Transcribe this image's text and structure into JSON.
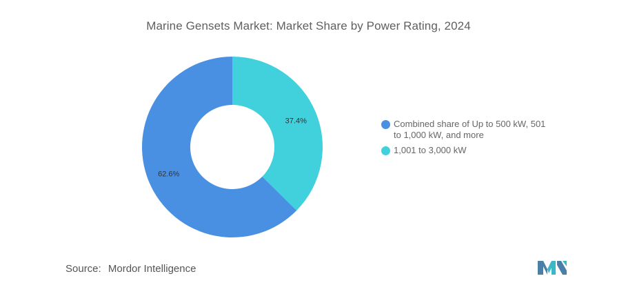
{
  "chart_data": {
    "type": "pie",
    "title": "Marine Gensets Market: Market Share by Power Rating, 2024",
    "categories": [
      "Combined share of Up to 500 kW, 501 to 1,000 kW, and more",
      "1,001 to 3,000 kW"
    ],
    "values": [
      62.6,
      37.4
    ],
    "value_labels": [
      "62.6%",
      "37.4%"
    ],
    "colors": [
      "#4a90e2",
      "#41d1dc"
    ],
    "style": "donut",
    "legend_position": "right"
  },
  "legend": {
    "items": [
      {
        "label": "Combined share of Up to 500 kW, 501 to 1,000 kW, and more",
        "color": "#4a90e2"
      },
      {
        "label": "1,001 to 3,000 kW",
        "color": "#41d1dc"
      }
    ]
  },
  "source": {
    "key": "Source:",
    "value": "Mordor Intelligence"
  },
  "logo": {
    "icon": "mordor-intelligence-logo-icon"
  }
}
